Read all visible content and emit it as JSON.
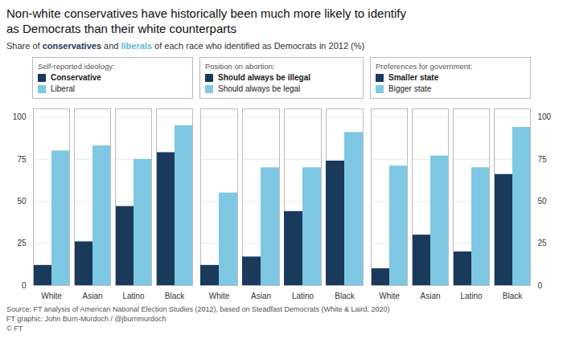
{
  "title": "Non-white conservatives have historically been much more likely to identify\nas Democrats than their white counterparts",
  "subtitle": [
    "Share of ",
    {
      "text": "conservatives",
      "color": "#1a3a5c"
    },
    " and ",
    {
      "text": "liberals",
      "color": "#5bbcd6"
    },
    " of each race who identified as Democrats in 2012 (%)"
  ],
  "caption": [
    "Source: FT analysis of American National Election Studies (2012), based on Steadfast Democrats (White & Laird, 2020)",
    "FT graphic: John Burn-Murdoch / @jburnmurdoch",
    "© FT"
  ],
  "chart_data": [
    {
      "type": "bar",
      "title": "Self-reported ideology:",
      "categories": [
        "White",
        "Asian",
        "Latino",
        "Black"
      ],
      "series": [
        {
          "name": "Conservative",
          "color": "#1a3a5c",
          "values": [
            12,
            26,
            47,
            79
          ]
        },
        {
          "name": "Liberal",
          "color": "#7ec8e3",
          "values": [
            80,
            83,
            75,
            95
          ]
        }
      ],
      "ylim": [
        0,
        105
      ],
      "yticks": [
        0,
        25,
        50,
        75,
        100
      ],
      "grid": true,
      "legend": "top"
    },
    {
      "type": "bar",
      "title": "Position on abortion:",
      "categories": [
        "White",
        "Asian",
        "Latino",
        "Black"
      ],
      "series": [
        {
          "name": "Should always be illegal",
          "color": "#1a3a5c",
          "values": [
            12,
            17,
            44,
            74
          ]
        },
        {
          "name": "Should always be legal",
          "color": "#7ec8e3",
          "values": [
            55,
            70,
            70,
            91
          ]
        }
      ],
      "ylim": [
        0,
        105
      ],
      "yticks": [
        0,
        25,
        50,
        75,
        100
      ],
      "grid": true,
      "legend": "top",
      "tick_labels": "x"
    },
    {
      "type": "bar",
      "title": "Preferences for government:",
      "categories": [
        "White",
        "Asian",
        "Latino",
        "Black"
      ],
      "series": [
        {
          "name": "Smaller state",
          "color": "#1a3a5c",
          "values": [
            10,
            30,
            20,
            66
          ]
        },
        {
          "name": "Bigger state",
          "color": "#7ec8e3",
          "values": [
            71,
            77,
            70,
            94
          ]
        }
      ],
      "ylim": [
        0,
        105
      ],
      "yticks": [
        0,
        25,
        50,
        75,
        100
      ],
      "grid": true,
      "legend": "top"
    }
  ]
}
